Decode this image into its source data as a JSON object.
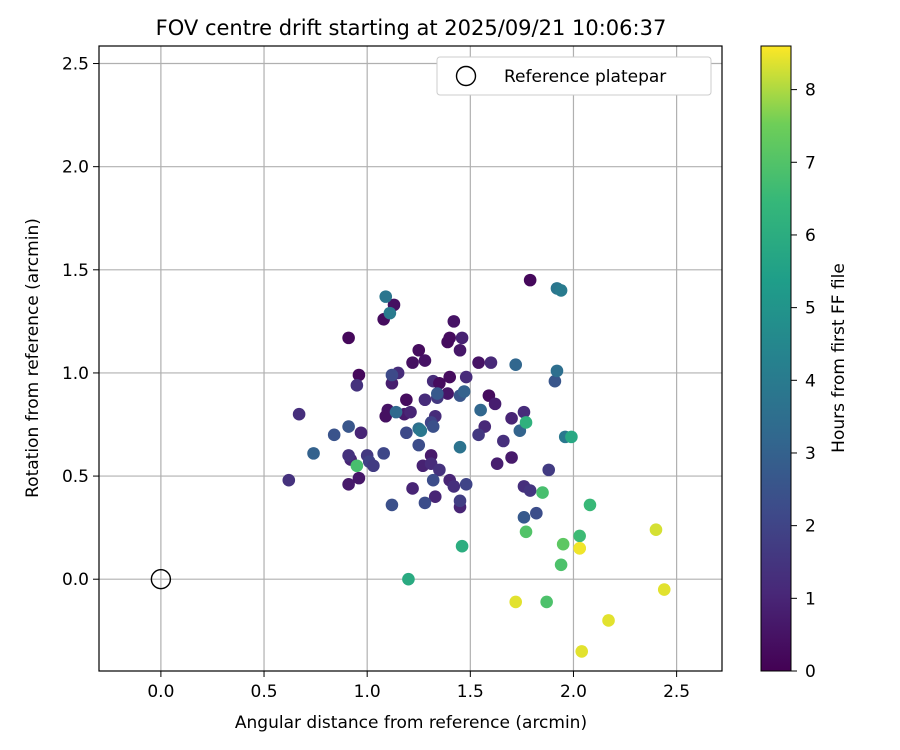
{
  "chart_data": {
    "type": "scatter",
    "title": "FOV centre drift starting at 2025/09/21 10:06:37",
    "xlabel": "Angular distance from reference (arcmin)",
    "ylabel": "Rotation from reference (arcmin)",
    "xlim": [
      -0.3,
      2.72
    ],
    "ylim": [
      -0.445,
      2.585
    ],
    "x_ticks": [
      0.0,
      0.5,
      1.0,
      1.5,
      2.0,
      2.5
    ],
    "y_ticks": [
      0.0,
      0.5,
      1.0,
      1.5,
      2.0,
      2.5
    ],
    "grid": true,
    "legend": {
      "placement": "top-right",
      "entries": [
        {
          "label": "Reference platepar",
          "marker": "open-circle"
        }
      ]
    },
    "reference_point": {
      "x": 0.0,
      "y": 0.0
    },
    "colorbar": {
      "label": "Hours from first FF file",
      "min": 0,
      "max": 8.6,
      "ticks": [
        0,
        1,
        2,
        3,
        4,
        5,
        6,
        7,
        8
      ],
      "colormap": "viridis"
    },
    "points": [
      {
        "x": 0.91,
        "y": 1.17,
        "c": 0.2
      },
      {
        "x": 0.96,
        "y": 0.99,
        "c": 0.2
      },
      {
        "x": 1.08,
        "y": 1.26,
        "c": 0.3
      },
      {
        "x": 1.13,
        "y": 1.33,
        "c": 0.4
      },
      {
        "x": 1.25,
        "y": 1.11,
        "c": 0.3
      },
      {
        "x": 1.22,
        "y": 1.05,
        "c": 0.4
      },
      {
        "x": 1.28,
        "y": 1.06,
        "c": 0.5
      },
      {
        "x": 1.39,
        "y": 1.15,
        "c": 0.3
      },
      {
        "x": 1.42,
        "y": 1.25,
        "c": 0.5
      },
      {
        "x": 1.4,
        "y": 1.17,
        "c": 0.3
      },
      {
        "x": 1.45,
        "y": 1.11,
        "c": 0.6
      },
      {
        "x": 1.46,
        "y": 1.17,
        "c": 0.9
      },
      {
        "x": 1.54,
        "y": 1.05,
        "c": 0.5
      },
      {
        "x": 1.6,
        "y": 1.05,
        "c": 1.1
      },
      {
        "x": 1.79,
        "y": 1.45,
        "c": 0.2
      },
      {
        "x": 1.12,
        "y": 0.95,
        "c": 0.8
      },
      {
        "x": 1.15,
        "y": 1.0,
        "c": 1.2
      },
      {
        "x": 1.1,
        "y": 0.82,
        "c": 0.5
      },
      {
        "x": 1.09,
        "y": 0.79,
        "c": 0.4
      },
      {
        "x": 1.18,
        "y": 0.8,
        "c": 0.7
      },
      {
        "x": 1.19,
        "y": 0.87,
        "c": 0.3
      },
      {
        "x": 1.21,
        "y": 0.81,
        "c": 1.0
      },
      {
        "x": 1.28,
        "y": 0.87,
        "c": 1.2
      },
      {
        "x": 1.32,
        "y": 0.96,
        "c": 1.2
      },
      {
        "x": 1.35,
        "y": 0.95,
        "c": 0.3
      },
      {
        "x": 1.39,
        "y": 0.9,
        "c": 0.6
      },
      {
        "x": 1.4,
        "y": 0.98,
        "c": 0.3
      },
      {
        "x": 1.34,
        "y": 0.88,
        "c": 1.6
      },
      {
        "x": 1.48,
        "y": 0.98,
        "c": 1.2
      },
      {
        "x": 1.59,
        "y": 0.89,
        "c": 0.3
      },
      {
        "x": 1.62,
        "y": 0.85,
        "c": 0.8
      },
      {
        "x": 1.7,
        "y": 0.78,
        "c": 1.0
      },
      {
        "x": 1.76,
        "y": 0.81,
        "c": 1.2
      },
      {
        "x": 1.66,
        "y": 0.67,
        "c": 1.3
      },
      {
        "x": 1.7,
        "y": 0.59,
        "c": 0.7
      },
      {
        "x": 1.63,
        "y": 0.56,
        "c": 0.8
      },
      {
        "x": 1.57,
        "y": 0.74,
        "c": 1.1
      },
      {
        "x": 1.54,
        "y": 0.7,
        "c": 1.6
      },
      {
        "x": 1.33,
        "y": 0.79,
        "c": 1.2
      },
      {
        "x": 1.31,
        "y": 0.76,
        "c": 2.0
      },
      {
        "x": 1.31,
        "y": 0.6,
        "c": 0.7
      },
      {
        "x": 1.27,
        "y": 0.55,
        "c": 0.9
      },
      {
        "x": 1.31,
        "y": 0.56,
        "c": 1.2
      },
      {
        "x": 1.35,
        "y": 0.53,
        "c": 1.4
      },
      {
        "x": 1.4,
        "y": 0.48,
        "c": 1.0
      },
      {
        "x": 1.42,
        "y": 0.45,
        "c": 1.3
      },
      {
        "x": 1.48,
        "y": 0.46,
        "c": 2.0
      },
      {
        "x": 1.33,
        "y": 0.4,
        "c": 1.0
      },
      {
        "x": 1.45,
        "y": 0.35,
        "c": 1.0
      },
      {
        "x": 1.45,
        "y": 0.38,
        "c": 1.8
      },
      {
        "x": 1.22,
        "y": 0.44,
        "c": 1.0
      },
      {
        "x": 1.28,
        "y": 0.37,
        "c": 2.3
      },
      {
        "x": 1.12,
        "y": 0.36,
        "c": 2.4
      },
      {
        "x": 0.91,
        "y": 0.46,
        "c": 0.7
      },
      {
        "x": 0.96,
        "y": 0.49,
        "c": 0.6
      },
      {
        "x": 0.92,
        "y": 0.58,
        "c": 1.0
      },
      {
        "x": 0.91,
        "y": 0.6,
        "c": 1.4
      },
      {
        "x": 1.0,
        "y": 0.6,
        "c": 1.6
      },
      {
        "x": 1.01,
        "y": 0.57,
        "c": 1.9
      },
      {
        "x": 1.03,
        "y": 0.55,
        "c": 1.7
      },
      {
        "x": 1.08,
        "y": 0.61,
        "c": 2.1
      },
      {
        "x": 0.97,
        "y": 0.71,
        "c": 1.0
      },
      {
        "x": 0.84,
        "y": 0.7,
        "c": 2.5
      },
      {
        "x": 0.91,
        "y": 0.74,
        "c": 2.6
      },
      {
        "x": 0.67,
        "y": 0.8,
        "c": 1.3
      },
      {
        "x": 0.62,
        "y": 0.48,
        "c": 1.4
      },
      {
        "x": 0.74,
        "y": 0.61,
        "c": 3.0
      },
      {
        "x": 0.95,
        "y": 0.94,
        "c": 1.4
      },
      {
        "x": 1.12,
        "y": 0.99,
        "c": 2.2
      },
      {
        "x": 1.14,
        "y": 0.81,
        "c": 3.3
      },
      {
        "x": 1.19,
        "y": 0.71,
        "c": 2.2
      },
      {
        "x": 1.25,
        "y": 0.73,
        "c": 3.5
      },
      {
        "x": 1.25,
        "y": 0.65,
        "c": 2.3
      },
      {
        "x": 1.26,
        "y": 0.72,
        "c": 3.9
      },
      {
        "x": 1.32,
        "y": 0.48,
        "c": 2.3
      },
      {
        "x": 1.32,
        "y": 0.74,
        "c": 2.4
      },
      {
        "x": 1.34,
        "y": 0.9,
        "c": 2.7
      },
      {
        "x": 1.45,
        "y": 0.89,
        "c": 2.6
      },
      {
        "x": 1.47,
        "y": 0.91,
        "c": 3.0
      },
      {
        "x": 1.55,
        "y": 0.82,
        "c": 3.2
      },
      {
        "x": 1.45,
        "y": 0.64,
        "c": 3.7
      },
      {
        "x": 1.09,
        "y": 1.37,
        "c": 3.8
      },
      {
        "x": 1.11,
        "y": 1.29,
        "c": 4.0
      },
      {
        "x": 1.72,
        "y": 1.04,
        "c": 3.2
      },
      {
        "x": 1.74,
        "y": 0.72,
        "c": 3.1
      },
      {
        "x": 1.76,
        "y": 0.3,
        "c": 2.7
      },
      {
        "x": 1.82,
        "y": 0.32,
        "c": 2.3
      },
      {
        "x": 1.76,
        "y": 0.45,
        "c": 1.3
      },
      {
        "x": 1.79,
        "y": 0.43,
        "c": 1.5
      },
      {
        "x": 1.88,
        "y": 0.53,
        "c": 1.7
      },
      {
        "x": 1.91,
        "y": 0.96,
        "c": 2.6
      },
      {
        "x": 1.92,
        "y": 1.01,
        "c": 3.5
      },
      {
        "x": 1.92,
        "y": 1.41,
        "c": 3.8
      },
      {
        "x": 1.94,
        "y": 1.4,
        "c": 4.0
      },
      {
        "x": 1.96,
        "y": 0.69,
        "c": 3.9
      },
      {
        "x": 1.99,
        "y": 0.69,
        "c": 5.8
      },
      {
        "x": 1.77,
        "y": 0.76,
        "c": 6.2
      },
      {
        "x": 0.95,
        "y": 0.55,
        "c": 6.8
      },
      {
        "x": 1.2,
        "y": 0.0,
        "c": 5.9
      },
      {
        "x": 1.46,
        "y": 0.16,
        "c": 6.0
      },
      {
        "x": 1.77,
        "y": 0.23,
        "c": 7.0
      },
      {
        "x": 1.85,
        "y": 0.42,
        "c": 6.8
      },
      {
        "x": 1.94,
        "y": 0.07,
        "c": 6.9
      },
      {
        "x": 1.95,
        "y": 0.17,
        "c": 7.2
      },
      {
        "x": 2.03,
        "y": 0.21,
        "c": 6.6
      },
      {
        "x": 2.08,
        "y": 0.36,
        "c": 6.5
      },
      {
        "x": 1.87,
        "y": -0.11,
        "c": 6.9
      },
      {
        "x": 2.03,
        "y": 0.15,
        "c": 8.2
      },
      {
        "x": 1.72,
        "y": -0.11,
        "c": 8.4
      },
      {
        "x": 2.04,
        "y": -0.35,
        "c": 8.4
      },
      {
        "x": 2.17,
        "y": -0.2,
        "c": 8.4
      },
      {
        "x": 2.4,
        "y": 0.24,
        "c": 8.3
      },
      {
        "x": 2.44,
        "y": -0.05,
        "c": 8.4
      },
      {
        "x": 2.03,
        "y": 0.15,
        "c": 8.5
      }
    ]
  }
}
